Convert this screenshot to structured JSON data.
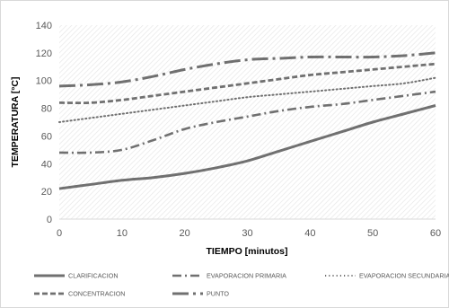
{
  "chart_data": {
    "type": "line",
    "xlabel": "TIEMPO [minutos]",
    "ylabel": "TEMPERATURA [°C]",
    "xlim": [
      0,
      60
    ],
    "ylim": [
      0,
      140
    ],
    "x_ticks": [
      0,
      10,
      20,
      30,
      40,
      50,
      60
    ],
    "y_ticks": [
      0,
      20,
      40,
      60,
      80,
      100,
      120,
      140
    ],
    "grid": false,
    "plot_background": "hatched-light-grey",
    "legend_position": "bottom",
    "x": [
      0,
      5,
      10,
      15,
      20,
      25,
      30,
      35,
      40,
      45,
      50,
      55,
      60
    ],
    "series": [
      {
        "name": "CLARIFICACION",
        "style": "solid",
        "color": "#707070",
        "values": [
          22,
          25,
          28,
          30,
          33,
          37,
          42,
          49,
          56,
          63,
          70,
          76,
          82
        ]
      },
      {
        "name": "EVAPORACION PRIMARIA",
        "style": "dash-dot",
        "color": "#707070",
        "values": [
          48,
          48,
          50,
          57,
          65,
          70,
          74,
          78,
          81,
          83,
          86,
          89,
          92
        ]
      },
      {
        "name": "EVAPORACION SECUNDARIA",
        "style": "dotted",
        "color": "#707070",
        "values": [
          70,
          73,
          76,
          79,
          82,
          85,
          88,
          90,
          92,
          94,
          96,
          98,
          102
        ]
      },
      {
        "name": "CONCENTRACION",
        "style": "dashed",
        "color": "#707070",
        "values": [
          84,
          84,
          86,
          89,
          92,
          95,
          98,
          101,
          104,
          106,
          108,
          110,
          112
        ]
      },
      {
        "name": "PUNTO",
        "style": "long-dash-dot",
        "color": "#707070",
        "values": [
          96,
          97,
          99,
          103,
          108,
          112,
          115,
          116,
          117,
          117,
          117,
          118,
          120
        ]
      }
    ]
  }
}
